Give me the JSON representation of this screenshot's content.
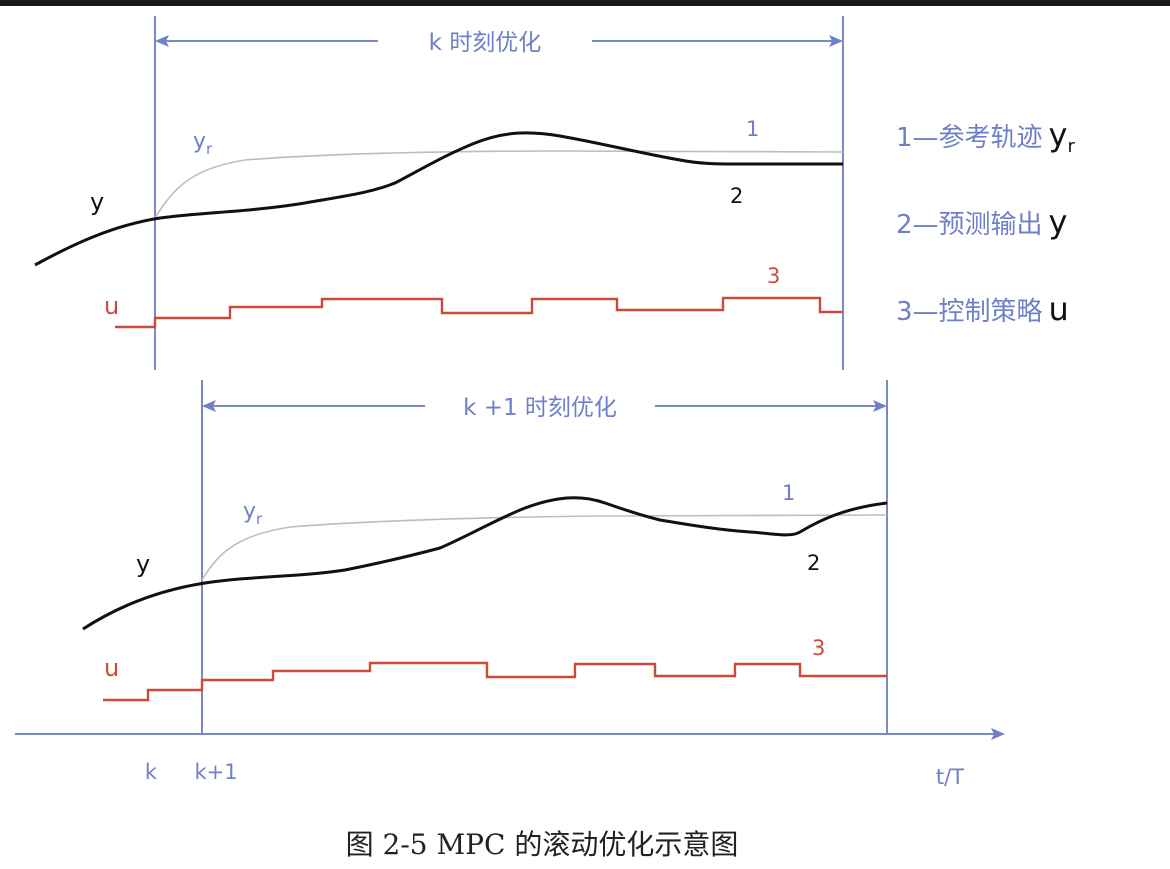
{
  "panels": [
    {
      "window_label": "k 时刻优化",
      "yr_label": "y",
      "yr_sub": "r",
      "y_label": "y",
      "u_label": "u",
      "marker_1": "1",
      "marker_2": "2",
      "marker_3": "3"
    },
    {
      "window_label": "k +1 时刻优化",
      "yr_label": "y",
      "yr_sub": "r",
      "y_label": "y",
      "u_label": "u",
      "marker_1": "1",
      "marker_2": "2",
      "marker_3": "3"
    }
  ],
  "legend": [
    {
      "text": "1—参考轨迹",
      "symbol": "y",
      "symbol_sub": "r"
    },
    {
      "text": "2—预测输出",
      "symbol": "y",
      "symbol_sub": ""
    },
    {
      "text": "3—控制策略",
      "symbol": "u",
      "symbol_sub": ""
    }
  ],
  "axis": {
    "tick_k": "k",
    "tick_k1": "k+1",
    "x_label": "t/T"
  },
  "caption": "图 2-5 MPC 的滚动优化示意图",
  "colors": {
    "blue": "#6f7fc8",
    "red": "#cc4a3a",
    "black": "#111111",
    "reference": "#bdbdbd"
  }
}
